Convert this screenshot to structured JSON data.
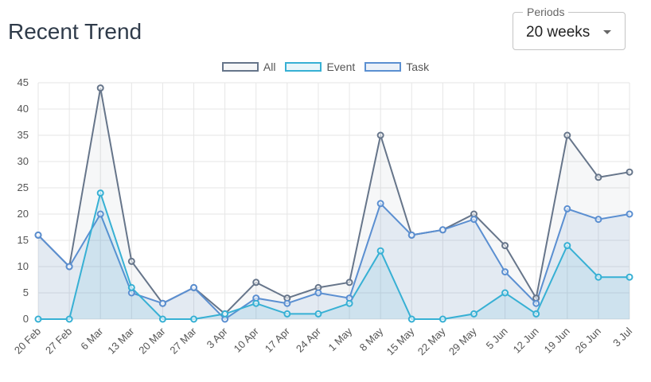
{
  "title": "Recent Trend",
  "period_selector": {
    "label": "Periods",
    "value": "20 weeks"
  },
  "chart_data": {
    "type": "line",
    "categories": [
      "20 Feb",
      "27 Feb",
      "6 Mar",
      "13 Mar",
      "20 Mar",
      "27 Mar",
      "3 Apr",
      "10 Apr",
      "17 Apr",
      "24 Apr",
      "1 May",
      "8 May",
      "15 May",
      "22 May",
      "29 May",
      "5 Jun",
      "12 Jun",
      "19 Jun",
      "26 Jun",
      "3 Jul"
    ],
    "ylim": [
      0,
      45
    ],
    "yticks": [
      0,
      5,
      10,
      15,
      20,
      25,
      30,
      35,
      40,
      45
    ],
    "grid": true,
    "legend_position": "top-center",
    "series": [
      {
        "name": "All",
        "color": "#66758a",
        "fill": "rgba(102,117,138,0.06)",
        "values": [
          16,
          10,
          44,
          11,
          3,
          6,
          1,
          7,
          4,
          6,
          7,
          35,
          16,
          17,
          20,
          14,
          4,
          35,
          27,
          28
        ]
      },
      {
        "name": "Task",
        "color": "#5b8fd1",
        "fill": "rgba(91,143,209,0.12)",
        "values": [
          16,
          10,
          20,
          5,
          3,
          6,
          0,
          4,
          3,
          5,
          4,
          22,
          16,
          17,
          19,
          9,
          3,
          21,
          19,
          20
        ]
      },
      {
        "name": "Event",
        "color": "#37b0d4",
        "fill": "rgba(55,176,212,0.12)",
        "values": [
          0,
          0,
          24,
          6,
          0,
          0,
          1,
          3,
          1,
          1,
          3,
          13,
          0,
          0,
          1,
          5,
          1,
          14,
          8,
          8
        ]
      }
    ],
    "legend_order": [
      "All",
      "Event",
      "Task"
    ]
  }
}
